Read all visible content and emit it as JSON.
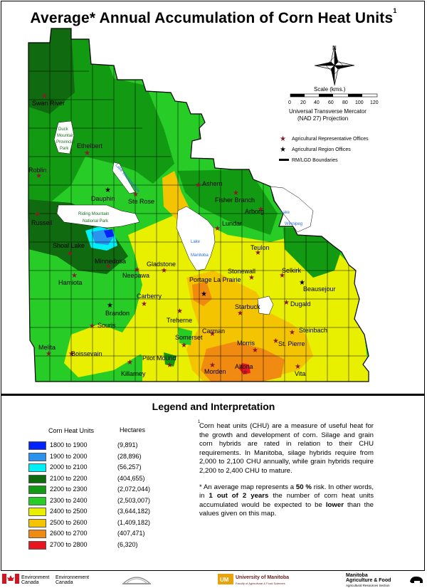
{
  "title": "Average* Annual Accumulation of Corn Heat Units",
  "title_note": "1",
  "compass_letter": "N",
  "scale": {
    "title": "Scale (kms.)",
    "ticks": [
      "0",
      "20",
      "40",
      "60",
      "80",
      "100",
      "120"
    ],
    "projection_line1": "Universal Transverse Mercator",
    "projection_line2": "(NAD 27) Projection"
  },
  "map_legend": [
    {
      "symbol": "star-icon",
      "label": "Agricultural Representative Offices",
      "color": "#8b1a2b"
    },
    {
      "symbol": "star-icon",
      "label": "Agricultural Region Offices",
      "color": "#000000"
    },
    {
      "symbol": "line-icon",
      "label": "RM/LGD Boundaries",
      "color": "#000000"
    }
  ],
  "places": [
    "Swan River",
    "Ethelbert",
    "Roblin",
    "Dauphin",
    "Ste Rose",
    "Ashern",
    "Fisher Branch",
    "Arborg",
    "Russell",
    "Lundar",
    "Shoal Lake",
    "Minnedosa",
    "Gladstone",
    "Neepawa",
    "Teulon",
    "Hamiota",
    "Portage La Prairie",
    "Stonewall",
    "Selkirk",
    "Beausejour",
    "Carberry",
    "Dugald",
    "Brandon",
    "Starbuck",
    "Treherne",
    "Souris",
    "Carman",
    "Steinbach",
    "Somerset",
    "Melita",
    "Morris",
    "St. Pierre",
    "Boissevain",
    "Pilot Mound",
    "Killarney",
    "Altona",
    "Morden",
    "Vita"
  ],
  "park_labels": [
    "Duck",
    "Mountain",
    "Provincial",
    "Park",
    "Riding Mountain",
    "National Park"
  ],
  "water_labels": [
    "Lake Winnipegosis",
    "Lake",
    "Manitoba",
    "Lake",
    "Winnipeg"
  ],
  "legend": {
    "title": "Legend and Interpretation",
    "col_chu": "Corn Heat Units",
    "col_ha": "Hectares",
    "rows": [
      {
        "range": "1800 to 1900",
        "hectares": "(9,891)",
        "color": "#0022ff"
      },
      {
        "range": "1900 to 2000",
        "hectares": "(28,896)",
        "color": "#2a93ef"
      },
      {
        "range": "2000 to 2100",
        "hectares": "(56,257)",
        "color": "#00f0f8"
      },
      {
        "range": "2100 to 2200",
        "hectares": "(404,655)",
        "color": "#106a10"
      },
      {
        "range": "2200 to 2300",
        "hectares": "(2,072,044)",
        "color": "#139a13"
      },
      {
        "range": "2300 to 2400",
        "hectares": "(2,503,007)",
        "color": "#27cc27"
      },
      {
        "range": "2400 to 2500",
        "hectares": "(3,644,182)",
        "color": "#e8f000"
      },
      {
        "range": "2500 to 2600",
        "hectares": "(1,409,182)",
        "color": "#f4c400"
      },
      {
        "range": "2600 to 2700",
        "hectares": "(407,471)",
        "color": "#f08a10"
      },
      {
        "range": "2700 to 2800",
        "hectares": "(6,320)",
        "color": "#e8141e"
      }
    ]
  },
  "interpretation": {
    "note_mark": "1",
    "para1": "Corn heat units (CHU) are a measure of useful heat for the growth and development of corn. Silage and grain corn hybrids are rated in relation to their CHU requirements. In Manitoba, silage hybrids require from 2,000 to 2,100 CHU annually, while grain hybrids require 2,200 to 2,400 CHU to mature.",
    "para2_a": "* An average map represents a ",
    "para2_b": "50 %",
    "para2_c": " risk. In other words, in ",
    "para2_d": "1 out of 2 years",
    "para2_e": " the number of corn heat units accumulated would be expected to be ",
    "para2_f": "lower",
    "para2_g": " than the values given on this map."
  },
  "footer": {
    "ec_en_1": "Environment",
    "ec_en_2": "Canada",
    "ec_fr_1": "Environnement",
    "ec_fr_2": "Canada",
    "um_1": "University of Manitoba",
    "um_2": "Faculty of Agricultural & Food Sciences",
    "ma_1": "Manitoba",
    "ma_2": "Agriculture & Food",
    "ma_3": "Agricultural Resources Section"
  }
}
